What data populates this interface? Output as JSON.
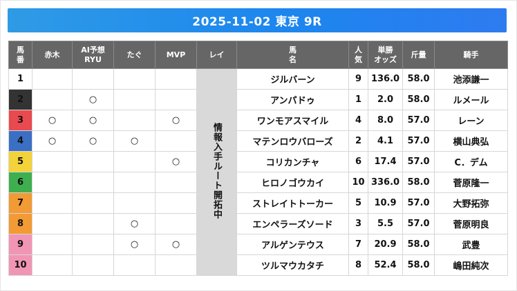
{
  "title": "2025-11-02 東京 9R",
  "headers": {
    "umaban": "馬\n番",
    "akagi": "赤木",
    "ai": "AI予想\nRYU",
    "tagu": "たぐ",
    "mvp": "MVP",
    "rei": "レイ",
    "uma": "馬\n名",
    "ninki": "人\n気",
    "odds": "単勝\nオッズ",
    "kinryo": "斤量",
    "kishu": "騎手"
  },
  "rei_label": "情報入手ルート開拓中",
  "mark_symbol": "○",
  "colors": {
    "title_bar": "#1c86ee",
    "header_bg": "#666666",
    "rei_bg": "#d9d9d9"
  },
  "rows": [
    {
      "num": "1",
      "akagi": "",
      "ai": "",
      "tagu": "",
      "mvp": "",
      "horse": "ジルバーン",
      "ninki": "9",
      "odds": "136.0",
      "kinryo": "58.0",
      "jockey": "池添謙一"
    },
    {
      "num": "2",
      "akagi": "",
      "ai": "○",
      "tagu": "",
      "mvp": "",
      "horse": "アンパドゥ",
      "ninki": "1",
      "odds": "2.0",
      "kinryo": "58.0",
      "jockey": "ルメール"
    },
    {
      "num": "3",
      "akagi": "○",
      "ai": "○",
      "tagu": "",
      "mvp": "○",
      "horse": "ワンモアスマイル",
      "ninki": "4",
      "odds": "8.0",
      "kinryo": "57.0",
      "jockey": "レーン"
    },
    {
      "num": "4",
      "akagi": "○",
      "ai": "○",
      "tagu": "○",
      "mvp": "",
      "horse": "マテンロウバローズ",
      "ninki": "2",
      "odds": "4.1",
      "kinryo": "57.0",
      "jockey": "横山典弘"
    },
    {
      "num": "5",
      "akagi": "",
      "ai": "",
      "tagu": "",
      "mvp": "○",
      "horse": "コリカンチャ",
      "ninki": "6",
      "odds": "17.4",
      "kinryo": "57.0",
      "jockey": "C．デム"
    },
    {
      "num": "6",
      "akagi": "",
      "ai": "",
      "tagu": "",
      "mvp": "",
      "horse": "ヒロノゴウカイ",
      "ninki": "10",
      "odds": "336.0",
      "kinryo": "58.0",
      "jockey": "菅原隆一"
    },
    {
      "num": "7",
      "akagi": "",
      "ai": "",
      "tagu": "",
      "mvp": "",
      "horse": "ストレイトトーカー",
      "ninki": "5",
      "odds": "10.9",
      "kinryo": "57.0",
      "jockey": "大野拓弥"
    },
    {
      "num": "8",
      "akagi": "",
      "ai": "",
      "tagu": "○",
      "mvp": "",
      "horse": "エンペラーズソード",
      "ninki": "3",
      "odds": "5.5",
      "kinryo": "57.0",
      "jockey": "菅原明良"
    },
    {
      "num": "9",
      "akagi": "",
      "ai": "",
      "tagu": "○",
      "mvp": "○",
      "horse": "アルゲンテウス",
      "ninki": "7",
      "odds": "20.9",
      "kinryo": "58.0",
      "jockey": "武豊"
    },
    {
      "num": "10",
      "akagi": "",
      "ai": "",
      "tagu": "",
      "mvp": "",
      "horse": "ツルマウカタチ",
      "ninki": "8",
      "odds": "52.4",
      "kinryo": "58.0",
      "jockey": "嶋田純次"
    }
  ]
}
